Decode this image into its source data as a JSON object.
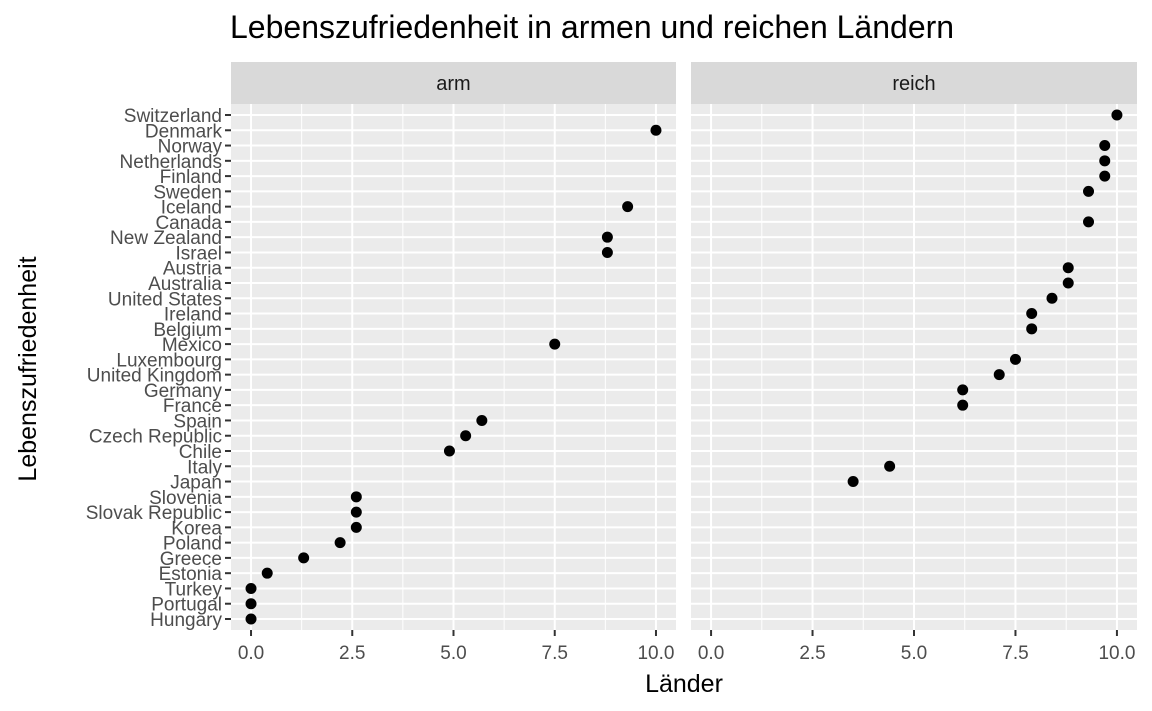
{
  "chart_data": {
    "type": "scatter",
    "title": "Lebenszufriedenheit in armen und reichen Ländern",
    "xlabel": "Länder",
    "ylabel": "Lebenszufriedenheit",
    "xlim": [
      0,
      10
    ],
    "x_ticks": [
      "0.0",
      "2.5",
      "5.0",
      "7.5",
      "10.0"
    ],
    "x_tick_values": [
      0,
      2.5,
      5,
      7.5,
      10
    ],
    "grid": true,
    "legend": "none",
    "point_color": "#000000",
    "panel_background": "#ebebeb",
    "strip_background": "#d9d9d9",
    "countries": [
      "Switzerland",
      "Denmark",
      "Norway",
      "Netherlands",
      "Finland",
      "Sweden",
      "Iceland",
      "Canada",
      "New Zealand",
      "Israel",
      "Austria",
      "Australia",
      "United States",
      "Ireland",
      "Belgium",
      "Mexico",
      "Luxembourg",
      "United Kingdom",
      "Germany",
      "France",
      "Spain",
      "Czech Republic",
      "Chile",
      "Italy",
      "Japan",
      "Slovenia",
      "Slovak Republic",
      "Korea",
      "Poland",
      "Greece",
      "Estonia",
      "Turkey",
      "Portugal",
      "Hungary"
    ],
    "facets": [
      {
        "label": "arm",
        "points": [
          {
            "country": "Denmark",
            "x": 10.0
          },
          {
            "country": "Iceland",
            "x": 9.3
          },
          {
            "country": "New Zealand",
            "x": 8.8
          },
          {
            "country": "Israel",
            "x": 8.8
          },
          {
            "country": "Mexico",
            "x": 7.5
          },
          {
            "country": "Spain",
            "x": 5.7
          },
          {
            "country": "Czech Republic",
            "x": 5.3
          },
          {
            "country": "Chile",
            "x": 4.9
          },
          {
            "country": "Slovenia",
            "x": 2.6
          },
          {
            "country": "Slovak Republic",
            "x": 2.6
          },
          {
            "country": "Korea",
            "x": 2.6
          },
          {
            "country": "Poland",
            "x": 2.2
          },
          {
            "country": "Greece",
            "x": 1.3
          },
          {
            "country": "Estonia",
            "x": 0.4
          },
          {
            "country": "Turkey",
            "x": 0.0
          },
          {
            "country": "Portugal",
            "x": 0.0
          },
          {
            "country": "Hungary",
            "x": 0.0
          }
        ]
      },
      {
        "label": "reich",
        "points": [
          {
            "country": "Switzerland",
            "x": 10.0
          },
          {
            "country": "Norway",
            "x": 9.7
          },
          {
            "country": "Netherlands",
            "x": 9.7
          },
          {
            "country": "Finland",
            "x": 9.7
          },
          {
            "country": "Sweden",
            "x": 9.3
          },
          {
            "country": "Canada",
            "x": 9.3
          },
          {
            "country": "Austria",
            "x": 8.8
          },
          {
            "country": "Australia",
            "x": 8.8
          },
          {
            "country": "United States",
            "x": 8.4
          },
          {
            "country": "Ireland",
            "x": 7.9
          },
          {
            "country": "Belgium",
            "x": 7.9
          },
          {
            "country": "Luxembourg",
            "x": 7.5
          },
          {
            "country": "United Kingdom",
            "x": 7.1
          },
          {
            "country": "Germany",
            "x": 6.2
          },
          {
            "country": "France",
            "x": 6.2
          },
          {
            "country": "Italy",
            "x": 4.4
          },
          {
            "country": "Japan",
            "x": 3.5
          }
        ]
      }
    ]
  }
}
